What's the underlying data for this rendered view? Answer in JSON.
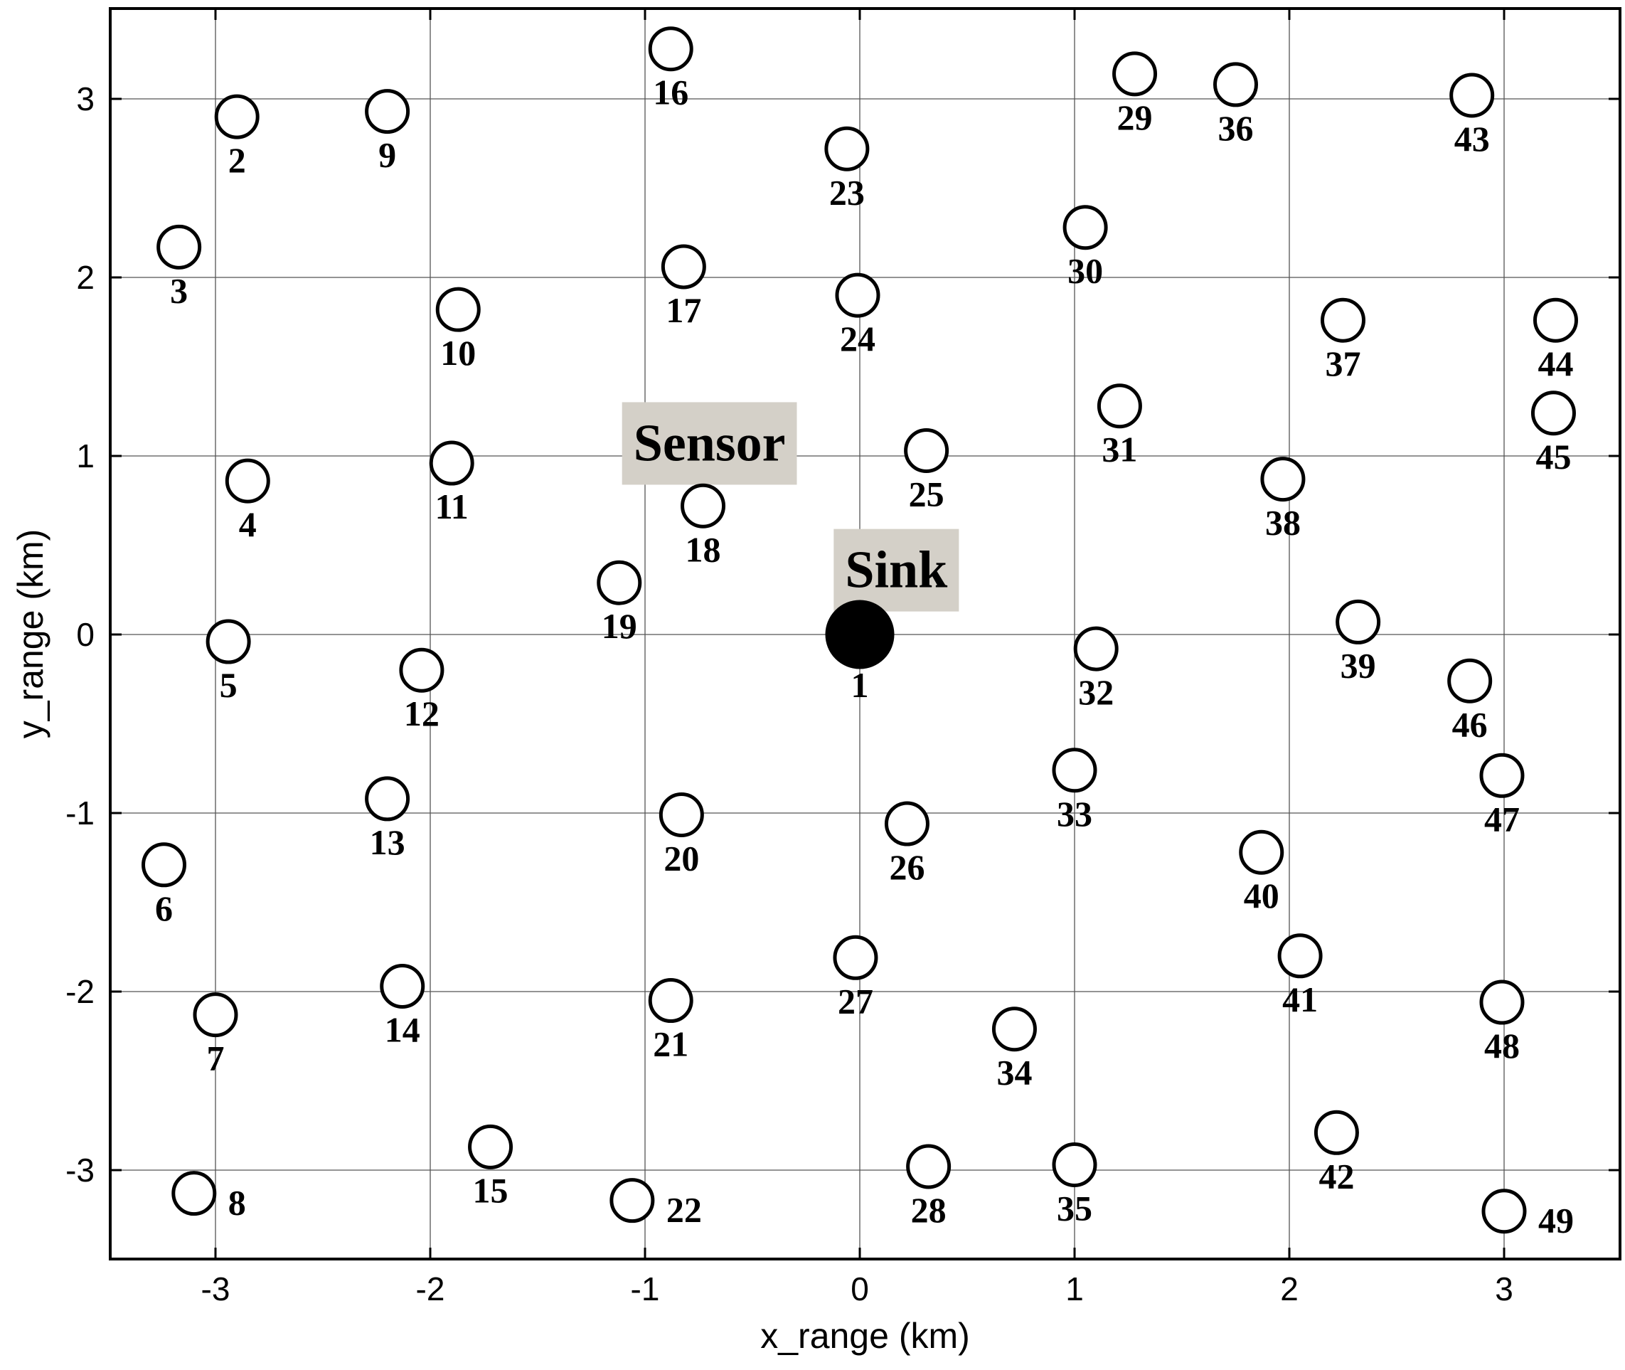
{
  "chart_data": {
    "type": "scatter",
    "xlabel": "x_range (km)",
    "ylabel": "y_range (km)",
    "xlim": [
      -3.5,
      3.5
    ],
    "ylim": [
      -3.5,
      3.5
    ],
    "grid": true,
    "x_ticks": [
      -3,
      -2,
      -1,
      0,
      1,
      2,
      3
    ],
    "y_ticks": [
      -3,
      -2,
      -1,
      0,
      1,
      2,
      3
    ],
    "x_tick_labels": [
      "-3",
      "-2",
      "-1",
      "0",
      "1",
      "2",
      "3"
    ],
    "y_tick_labels": [
      "-3",
      "-2",
      "-1",
      "0",
      "1",
      "2",
      "3"
    ],
    "annotations": [
      {
        "text": "Sensor",
        "x": -0.7,
        "y": 1.07
      },
      {
        "text": "Sink",
        "x": 0.17,
        "y": 0.36
      }
    ],
    "series": [
      {
        "role": "sink",
        "points": [
          {
            "id": "1",
            "x": 0.0,
            "y": 0.0
          }
        ]
      },
      {
        "role": "sensor",
        "points": [
          {
            "id": "2",
            "x": -2.9,
            "y": 2.9
          },
          {
            "id": "3",
            "x": -3.17,
            "y": 2.17
          },
          {
            "id": "4",
            "x": -2.85,
            "y": 0.86
          },
          {
            "id": "5",
            "x": -2.94,
            "y": -0.04
          },
          {
            "id": "6",
            "x": -3.24,
            "y": -1.29
          },
          {
            "id": "7",
            "x": -3.0,
            "y": -2.13
          },
          {
            "id": "8",
            "x": -3.1,
            "y": -3.13
          },
          {
            "id": "9",
            "x": -2.2,
            "y": 2.93
          },
          {
            "id": "10",
            "x": -1.87,
            "y": 1.82
          },
          {
            "id": "11",
            "x": -1.9,
            "y": 0.96
          },
          {
            "id": "12",
            "x": -2.04,
            "y": -0.2
          },
          {
            "id": "13",
            "x": -2.2,
            "y": -0.92
          },
          {
            "id": "14",
            "x": -2.13,
            "y": -1.97
          },
          {
            "id": "15",
            "x": -1.72,
            "y": -2.87
          },
          {
            "id": "16",
            "x": -0.88,
            "y": 3.28
          },
          {
            "id": "17",
            "x": -0.82,
            "y": 2.06
          },
          {
            "id": "18",
            "x": -0.73,
            "y": 0.72
          },
          {
            "id": "19",
            "x": -1.12,
            "y": 0.29
          },
          {
            "id": "20",
            "x": -0.83,
            "y": -1.01
          },
          {
            "id": "21",
            "x": -0.88,
            "y": -2.05
          },
          {
            "id": "22",
            "x": -1.06,
            "y": -3.17
          },
          {
            "id": "23",
            "x": -0.06,
            "y": 2.72
          },
          {
            "id": "24",
            "x": -0.01,
            "y": 1.9
          },
          {
            "id": "25",
            "x": 0.31,
            "y": 1.03
          },
          {
            "id": "26",
            "x": 0.22,
            "y": -1.06
          },
          {
            "id": "27",
            "x": -0.02,
            "y": -1.81
          },
          {
            "id": "28",
            "x": 0.32,
            "y": -2.98
          },
          {
            "id": "29",
            "x": 1.28,
            "y": 3.14
          },
          {
            "id": "30",
            "x": 1.05,
            "y": 2.28
          },
          {
            "id": "31",
            "x": 1.21,
            "y": 1.28
          },
          {
            "id": "32",
            "x": 1.1,
            "y": -0.08
          },
          {
            "id": "33",
            "x": 1.0,
            "y": -0.76
          },
          {
            "id": "34",
            "x": 0.72,
            "y": -2.21
          },
          {
            "id": "35",
            "x": 1.0,
            "y": -2.97
          },
          {
            "id": "36",
            "x": 1.75,
            "y": 3.08
          },
          {
            "id": "37",
            "x": 2.25,
            "y": 1.76
          },
          {
            "id": "38",
            "x": 1.97,
            "y": 0.87
          },
          {
            "id": "39",
            "x": 2.32,
            "y": 0.07
          },
          {
            "id": "40",
            "x": 1.87,
            "y": -1.22
          },
          {
            "id": "41",
            "x": 2.05,
            "y": -1.8
          },
          {
            "id": "42",
            "x": 2.22,
            "y": -2.79
          },
          {
            "id": "43",
            "x": 2.85,
            "y": 3.02
          },
          {
            "id": "44",
            "x": 3.24,
            "y": 1.76
          },
          {
            "id": "45",
            "x": 3.23,
            "y": 1.24
          },
          {
            "id": "46",
            "x": 2.84,
            "y": -0.26
          },
          {
            "id": "47",
            "x": 2.99,
            "y": -0.79
          },
          {
            "id": "48",
            "x": 2.99,
            "y": -2.06
          },
          {
            "id": "49",
            "x": 3.0,
            "y": -3.23
          }
        ]
      }
    ]
  }
}
